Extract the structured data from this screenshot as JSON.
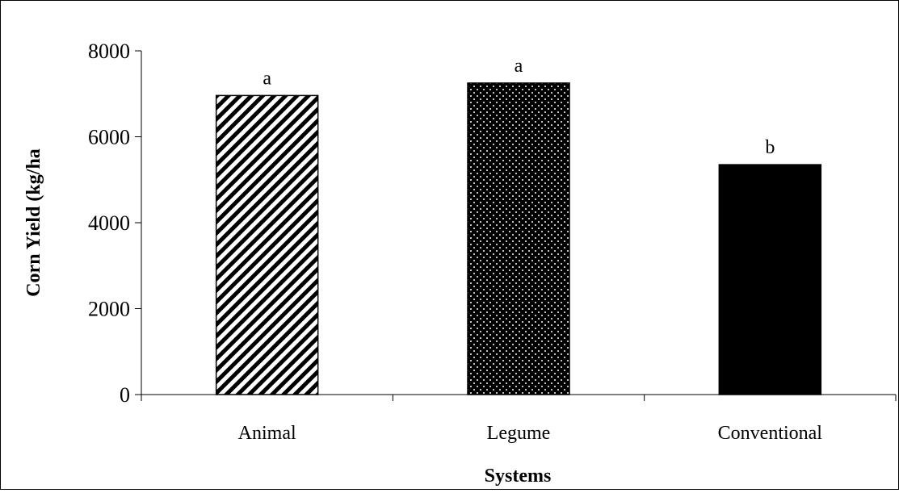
{
  "chart_data": {
    "type": "bar",
    "title": "",
    "xlabel": "Systems",
    "ylabel": "Corn Yield (kg/ha",
    "categories": [
      "Animal",
      "Legume",
      "Conventional"
    ],
    "values": [
      6960,
      7250,
      5350
    ],
    "significance_letters": [
      "a",
      "a",
      "b"
    ],
    "ylim": [
      0,
      8000
    ],
    "yticks": [
      0,
      2000,
      4000,
      6000,
      8000
    ],
    "ytick_labels": [
      "0",
      "2000",
      "4000",
      "6000",
      "8000"
    ],
    "grid": false,
    "legend": "none",
    "bar_fills": [
      "diagonal-stripes",
      "white-dots-on-black",
      "solid-black"
    ],
    "colors": {
      "ink": "#000000",
      "background": "#ffffff"
    }
  }
}
